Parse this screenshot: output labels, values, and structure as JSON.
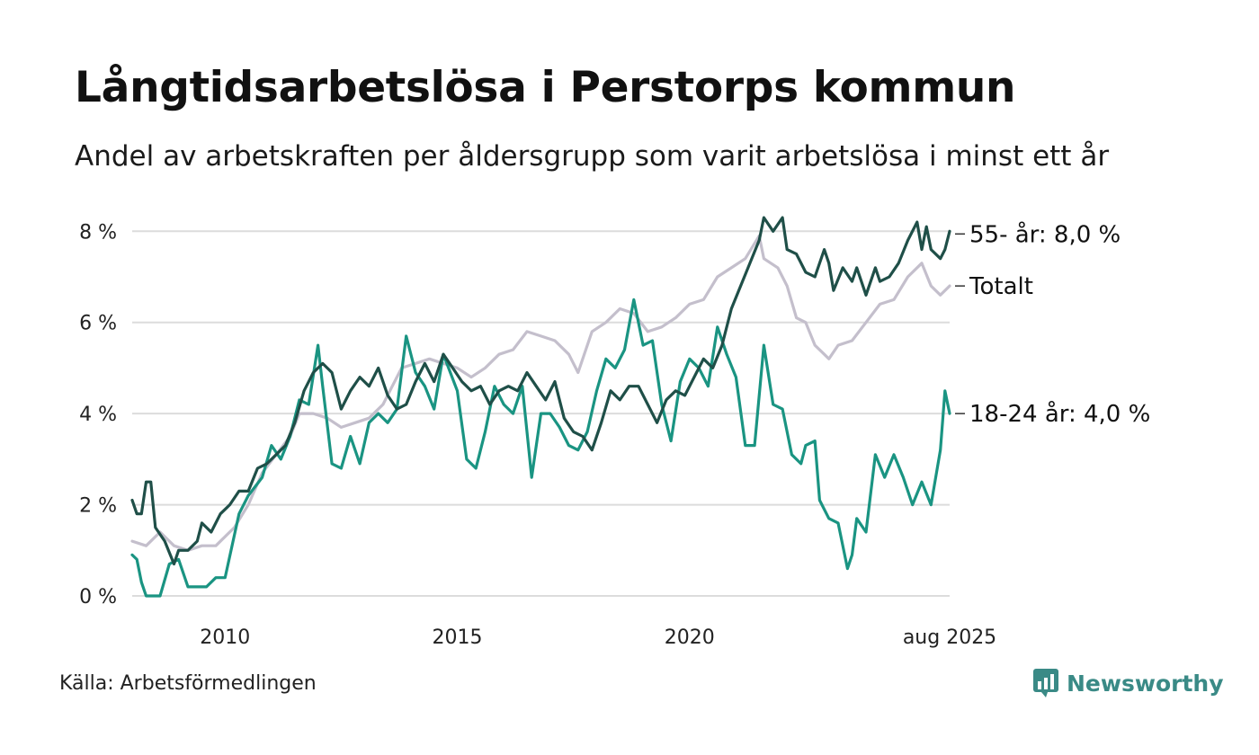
{
  "title": "Långtidsarbetslösa i Perstorps kommun",
  "subtitle": "Andel av arbetskraften per åldersgrupp som varit arbetslösa i minst ett år",
  "source": "Källa: Arbetsförmedlingen",
  "brand": "Newsworthy",
  "colors": {
    "age55": "#1f4f48",
    "total": "#c4bfcc",
    "age1824": "#1a9482",
    "grid": "#dcdcdc",
    "brand": "#3a8a86"
  },
  "chart_data": {
    "type": "line",
    "ylim": [
      0,
      8.4
    ],
    "yticks": [
      0,
      2,
      4,
      6,
      8
    ],
    "ytick_labels": [
      "0 %",
      "2 %",
      "4 %",
      "6 %",
      "8 %"
    ],
    "xlim": [
      2008.0,
      2025.6
    ],
    "xticks": [
      2010,
      2015,
      2020,
      2025.6
    ],
    "xtick_labels": [
      "2010",
      "2015",
      "2020",
      "aug 2025"
    ],
    "grid": true,
    "series": [
      {
        "key": "total",
        "name": "Totalt",
        "label": "Totalt",
        "color": "#c4bfcc",
        "points": [
          [
            2008.0,
            1.2
          ],
          [
            2008.3,
            1.1
          ],
          [
            2008.6,
            1.4
          ],
          [
            2008.9,
            1.1
          ],
          [
            2009.2,
            1.0
          ],
          [
            2009.5,
            1.1
          ],
          [
            2009.8,
            1.1
          ],
          [
            2010.2,
            1.5
          ],
          [
            2010.5,
            2.0
          ],
          [
            2010.8,
            2.7
          ],
          [
            2011.1,
            3.1
          ],
          [
            2011.4,
            3.5
          ],
          [
            2011.6,
            4.0
          ],
          [
            2011.9,
            4.0
          ],
          [
            2012.2,
            3.9
          ],
          [
            2012.5,
            3.7
          ],
          [
            2012.8,
            3.8
          ],
          [
            2013.1,
            3.9
          ],
          [
            2013.4,
            4.2
          ],
          [
            2013.6,
            4.6
          ],
          [
            2013.8,
            5.0
          ],
          [
            2014.1,
            5.1
          ],
          [
            2014.4,
            5.2
          ],
          [
            2014.7,
            5.1
          ],
          [
            2015.0,
            5.0
          ],
          [
            2015.3,
            4.8
          ],
          [
            2015.6,
            5.0
          ],
          [
            2015.9,
            5.3
          ],
          [
            2016.2,
            5.4
          ],
          [
            2016.5,
            5.8
          ],
          [
            2016.8,
            5.7
          ],
          [
            2017.1,
            5.6
          ],
          [
            2017.4,
            5.3
          ],
          [
            2017.6,
            4.9
          ],
          [
            2017.9,
            5.8
          ],
          [
            2018.2,
            6.0
          ],
          [
            2018.5,
            6.3
          ],
          [
            2018.8,
            6.2
          ],
          [
            2019.1,
            5.8
          ],
          [
            2019.4,
            5.9
          ],
          [
            2019.7,
            6.1
          ],
          [
            2020.0,
            6.4
          ],
          [
            2020.3,
            6.5
          ],
          [
            2020.6,
            7.0
          ],
          [
            2020.9,
            7.2
          ],
          [
            2021.2,
            7.4
          ],
          [
            2021.5,
            7.9
          ],
          [
            2021.6,
            7.4
          ],
          [
            2021.9,
            7.2
          ],
          [
            2022.1,
            6.8
          ],
          [
            2022.3,
            6.1
          ],
          [
            2022.5,
            6.0
          ],
          [
            2022.7,
            5.5
          ],
          [
            2022.9,
            5.3
          ],
          [
            2023.0,
            5.2
          ],
          [
            2023.2,
            5.5
          ],
          [
            2023.5,
            5.6
          ],
          [
            2023.8,
            6.0
          ],
          [
            2024.1,
            6.4
          ],
          [
            2024.4,
            6.5
          ],
          [
            2024.7,
            7.0
          ],
          [
            2025.0,
            7.3
          ],
          [
            2025.2,
            6.8
          ],
          [
            2025.4,
            6.6
          ],
          [
            2025.6,
            6.8
          ]
        ]
      },
      {
        "key": "age1824",
        "name": "18-24 år",
        "label": "18-24 år: 4,0 %",
        "color": "#1a9482",
        "points": [
          [
            2008.0,
            0.9
          ],
          [
            2008.1,
            0.8
          ],
          [
            2008.2,
            0.3
          ],
          [
            2008.3,
            0.0
          ],
          [
            2008.6,
            0.0
          ],
          [
            2008.8,
            0.7
          ],
          [
            2009.0,
            0.8
          ],
          [
            2009.2,
            0.2
          ],
          [
            2009.6,
            0.2
          ],
          [
            2009.8,
            0.4
          ],
          [
            2010.0,
            0.4
          ],
          [
            2010.3,
            1.8
          ],
          [
            2010.5,
            2.2
          ],
          [
            2010.8,
            2.6
          ],
          [
            2011.0,
            3.3
          ],
          [
            2011.2,
            3.0
          ],
          [
            2011.4,
            3.5
          ],
          [
            2011.6,
            4.3
          ],
          [
            2011.8,
            4.2
          ],
          [
            2012.0,
            5.5
          ],
          [
            2012.1,
            4.6
          ],
          [
            2012.3,
            2.9
          ],
          [
            2012.5,
            2.8
          ],
          [
            2012.7,
            3.5
          ],
          [
            2012.9,
            2.9
          ],
          [
            2013.1,
            3.8
          ],
          [
            2013.3,
            4.0
          ],
          [
            2013.5,
            3.8
          ],
          [
            2013.7,
            4.1
          ],
          [
            2013.9,
            5.7
          ],
          [
            2014.1,
            4.9
          ],
          [
            2014.3,
            4.6
          ],
          [
            2014.5,
            4.1
          ],
          [
            2014.7,
            5.3
          ],
          [
            2015.0,
            4.5
          ],
          [
            2015.2,
            3.0
          ],
          [
            2015.4,
            2.8
          ],
          [
            2015.6,
            3.6
          ],
          [
            2015.8,
            4.6
          ],
          [
            2016.0,
            4.2
          ],
          [
            2016.2,
            4.0
          ],
          [
            2016.4,
            4.6
          ],
          [
            2016.6,
            2.6
          ],
          [
            2016.8,
            4.0
          ],
          [
            2017.0,
            4.0
          ],
          [
            2017.2,
            3.7
          ],
          [
            2017.4,
            3.3
          ],
          [
            2017.6,
            3.2
          ],
          [
            2017.8,
            3.6
          ],
          [
            2018.0,
            4.5
          ],
          [
            2018.2,
            5.2
          ],
          [
            2018.4,
            5.0
          ],
          [
            2018.6,
            5.4
          ],
          [
            2018.8,
            6.5
          ],
          [
            2019.0,
            5.5
          ],
          [
            2019.2,
            5.6
          ],
          [
            2019.4,
            4.2
          ],
          [
            2019.6,
            3.4
          ],
          [
            2019.8,
            4.7
          ],
          [
            2020.0,
            5.2
          ],
          [
            2020.2,
            5.0
          ],
          [
            2020.4,
            4.6
          ],
          [
            2020.6,
            5.9
          ],
          [
            2020.8,
            5.3
          ],
          [
            2021.0,
            4.8
          ],
          [
            2021.2,
            3.3
          ],
          [
            2021.4,
            3.3
          ],
          [
            2021.6,
            5.5
          ],
          [
            2021.8,
            4.2
          ],
          [
            2022.0,
            4.1
          ],
          [
            2022.2,
            3.1
          ],
          [
            2022.4,
            2.9
          ],
          [
            2022.5,
            3.3
          ],
          [
            2022.7,
            3.4
          ],
          [
            2022.8,
            2.1
          ],
          [
            2023.0,
            1.7
          ],
          [
            2023.2,
            1.6
          ],
          [
            2023.4,
            0.6
          ],
          [
            2023.5,
            0.9
          ],
          [
            2023.6,
            1.7
          ],
          [
            2023.8,
            1.4
          ],
          [
            2024.0,
            3.1
          ],
          [
            2024.2,
            2.6
          ],
          [
            2024.4,
            3.1
          ],
          [
            2024.6,
            2.6
          ],
          [
            2024.8,
            2.0
          ],
          [
            2025.0,
            2.5
          ],
          [
            2025.2,
            2.0
          ],
          [
            2025.3,
            2.6
          ],
          [
            2025.4,
            3.2
          ],
          [
            2025.5,
            4.5
          ],
          [
            2025.6,
            4.0
          ]
        ]
      },
      {
        "key": "age55",
        "name": "55- år",
        "label": "55- år: 8,0 %",
        "color": "#1f4f48",
        "points": [
          [
            2008.0,
            2.1
          ],
          [
            2008.1,
            1.8
          ],
          [
            2008.2,
            1.8
          ],
          [
            2008.3,
            2.5
          ],
          [
            2008.4,
            2.5
          ],
          [
            2008.5,
            1.5
          ],
          [
            2008.7,
            1.2
          ],
          [
            2008.9,
            0.7
          ],
          [
            2009.0,
            1.0
          ],
          [
            2009.2,
            1.0
          ],
          [
            2009.4,
            1.2
          ],
          [
            2009.5,
            1.6
          ],
          [
            2009.7,
            1.4
          ],
          [
            2009.9,
            1.8
          ],
          [
            2010.1,
            2.0
          ],
          [
            2010.3,
            2.3
          ],
          [
            2010.5,
            2.3
          ],
          [
            2010.7,
            2.8
          ],
          [
            2010.9,
            2.9
          ],
          [
            2011.1,
            3.1
          ],
          [
            2011.3,
            3.3
          ],
          [
            2011.5,
            3.8
          ],
          [
            2011.7,
            4.5
          ],
          [
            2011.9,
            4.9
          ],
          [
            2012.1,
            5.1
          ],
          [
            2012.3,
            4.9
          ],
          [
            2012.5,
            4.1
          ],
          [
            2012.7,
            4.5
          ],
          [
            2012.9,
            4.8
          ],
          [
            2013.1,
            4.6
          ],
          [
            2013.3,
            5.0
          ],
          [
            2013.5,
            4.4
          ],
          [
            2013.7,
            4.1
          ],
          [
            2013.9,
            4.2
          ],
          [
            2014.1,
            4.7
          ],
          [
            2014.3,
            5.1
          ],
          [
            2014.5,
            4.7
          ],
          [
            2014.7,
            5.3
          ],
          [
            2014.9,
            5.0
          ],
          [
            2015.1,
            4.7
          ],
          [
            2015.3,
            4.5
          ],
          [
            2015.5,
            4.6
          ],
          [
            2015.7,
            4.2
          ],
          [
            2015.9,
            4.5
          ],
          [
            2016.1,
            4.6
          ],
          [
            2016.3,
            4.5
          ],
          [
            2016.5,
            4.9
          ],
          [
            2016.7,
            4.6
          ],
          [
            2016.9,
            4.3
          ],
          [
            2017.1,
            4.7
          ],
          [
            2017.3,
            3.9
          ],
          [
            2017.5,
            3.6
          ],
          [
            2017.7,
            3.5
          ],
          [
            2017.9,
            3.2
          ],
          [
            2018.1,
            3.8
          ],
          [
            2018.3,
            4.5
          ],
          [
            2018.5,
            4.3
          ],
          [
            2018.7,
            4.6
          ],
          [
            2018.9,
            4.6
          ],
          [
            2019.1,
            4.2
          ],
          [
            2019.3,
            3.8
          ],
          [
            2019.5,
            4.3
          ],
          [
            2019.7,
            4.5
          ],
          [
            2019.9,
            4.4
          ],
          [
            2020.1,
            4.8
          ],
          [
            2020.3,
            5.2
          ],
          [
            2020.5,
            5.0
          ],
          [
            2020.7,
            5.5
          ],
          [
            2020.9,
            6.3
          ],
          [
            2021.1,
            6.8
          ],
          [
            2021.3,
            7.3
          ],
          [
            2021.5,
            7.8
          ],
          [
            2021.6,
            8.3
          ],
          [
            2021.8,
            8.0
          ],
          [
            2022.0,
            8.3
          ],
          [
            2022.1,
            7.6
          ],
          [
            2022.3,
            7.5
          ],
          [
            2022.5,
            7.1
          ],
          [
            2022.7,
            7.0
          ],
          [
            2022.9,
            7.6
          ],
          [
            2023.0,
            7.3
          ],
          [
            2023.1,
            6.7
          ],
          [
            2023.3,
            7.2
          ],
          [
            2023.5,
            6.9
          ],
          [
            2023.6,
            7.2
          ],
          [
            2023.8,
            6.6
          ],
          [
            2024.0,
            7.2
          ],
          [
            2024.1,
            6.9
          ],
          [
            2024.3,
            7.0
          ],
          [
            2024.5,
            7.3
          ],
          [
            2024.7,
            7.8
          ],
          [
            2024.9,
            8.2
          ],
          [
            2025.0,
            7.6
          ],
          [
            2025.1,
            8.1
          ],
          [
            2025.2,
            7.6
          ],
          [
            2025.4,
            7.4
          ],
          [
            2025.5,
            7.6
          ],
          [
            2025.6,
            8.0
          ]
        ]
      }
    ]
  }
}
